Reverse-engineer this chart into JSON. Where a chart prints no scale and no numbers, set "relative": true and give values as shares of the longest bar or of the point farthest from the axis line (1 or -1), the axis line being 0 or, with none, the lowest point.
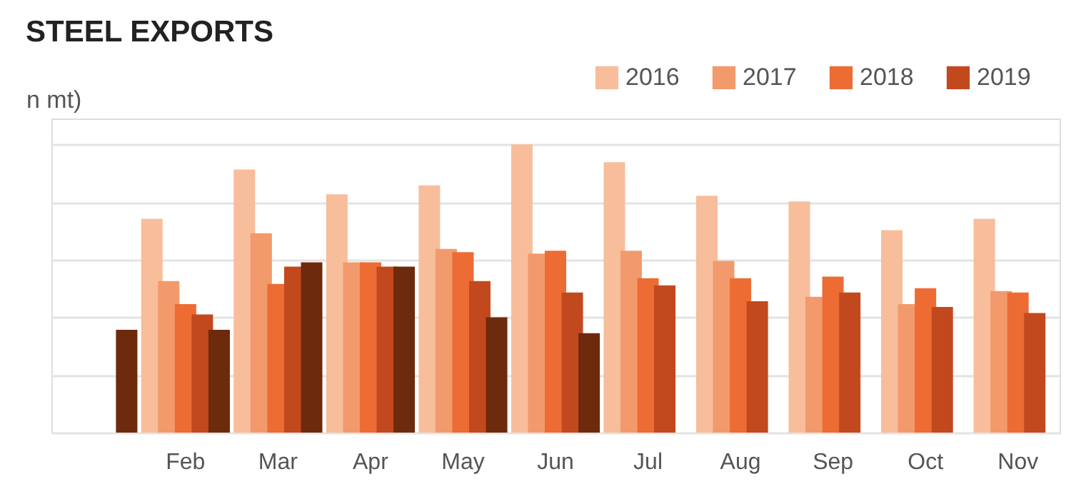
{
  "chart_data": {
    "type": "bar",
    "title": "STEEL EXPORTS",
    "ylabel": "n mt)",
    "relative": true,
    "grid": "y",
    "legend": "top right",
    "categories": [
      null,
      "Feb",
      "Mar",
      "Apr",
      "May",
      "Jun",
      "Jul",
      "Aug",
      "Sep",
      "Oct",
      "Nov"
    ],
    "series": [
      {
        "name": "2016",
        "color": "#f8bd9b",
        "values": [
          null,
          0.742,
          0.913,
          0.827,
          0.858,
          1.0,
          0.938,
          0.822,
          0.802,
          0.702,
          0.742
        ]
      },
      {
        "name": "2017",
        "color": "#f29a6c",
        "values": [
          null,
          0.526,
          0.692,
          0.591,
          0.637,
          0.621,
          0.631,
          0.596,
          0.471,
          0.446,
          0.491
        ]
      },
      {
        "name": "2018",
        "color": "#ec6c34",
        "values": [
          null,
          0.446,
          0.516,
          0.591,
          0.626,
          0.631,
          0.536,
          0.536,
          0.541,
          0.501,
          0.486
        ]
      },
      {
        "name": "2019",
        "color": "#c2491e",
        "values": [
          null,
          0.41,
          0.576,
          0.576,
          0.526,
          0.486,
          0.511,
          0.456,
          0.486,
          0.436,
          0.415
        ]
      },
      {
        "color": "#6e2a0c",
        "values": [
          0.357,
          0.357,
          0.591,
          0.576,
          0.4,
          0.345,
          null,
          null,
          null,
          null,
          null
        ]
      }
    ]
  }
}
